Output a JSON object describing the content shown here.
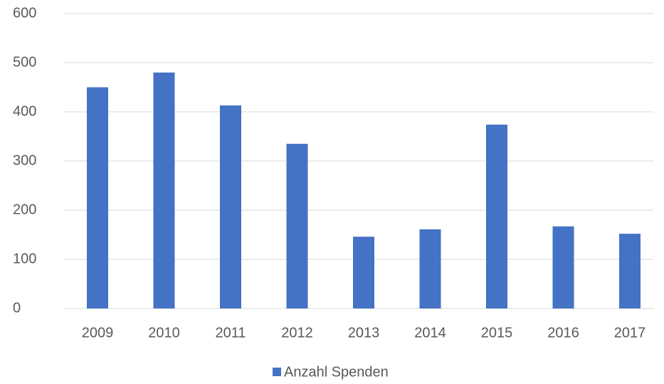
{
  "chart_data": {
    "type": "bar",
    "categories": [
      "2009",
      "2010",
      "2011",
      "2012",
      "2013",
      "2014",
      "2015",
      "2016",
      "2017"
    ],
    "series": [
      {
        "name": "Anzahl Spenden",
        "color": "#4472c4",
        "values": [
          450,
          480,
          413,
          335,
          146,
          161,
          374,
          167,
          152
        ]
      }
    ],
    "ylim": [
      0,
      600
    ],
    "yticks": [
      0,
      100,
      200,
      300,
      400,
      500,
      600
    ],
    "grid": true,
    "legend": "bottom"
  }
}
